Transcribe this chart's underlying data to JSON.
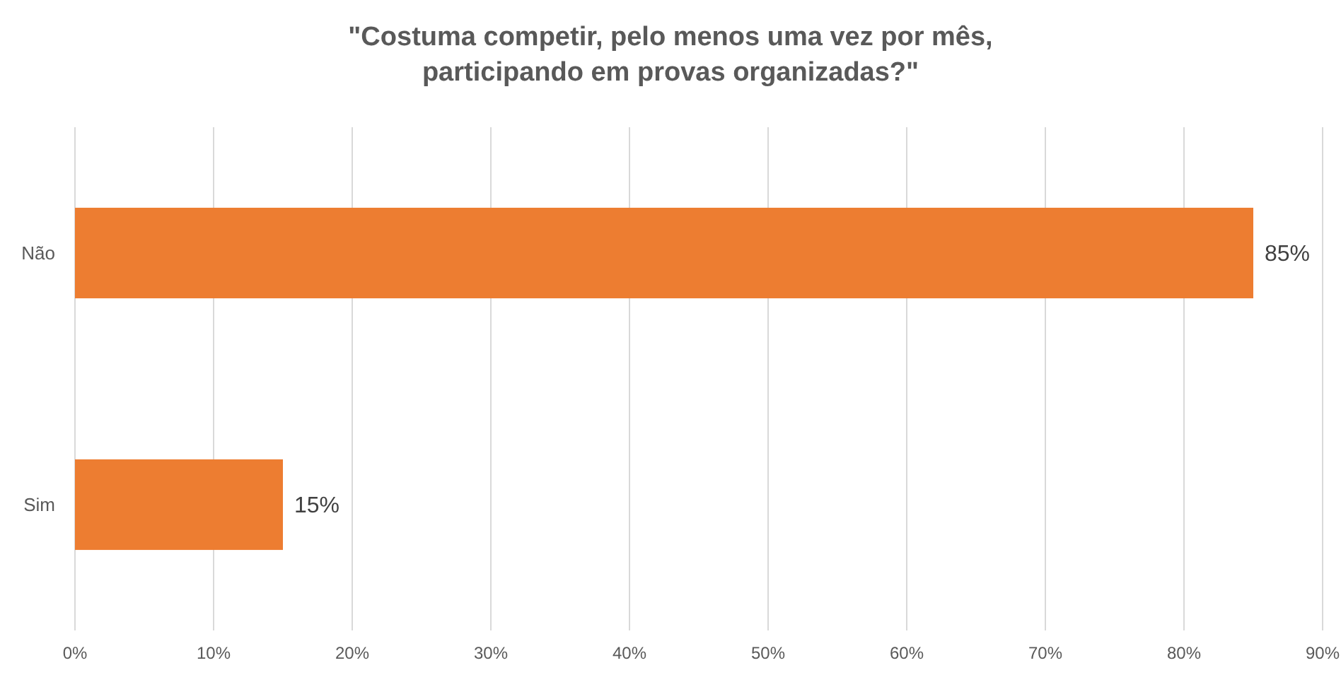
{
  "chart_data": {
    "type": "bar",
    "orientation": "horizontal",
    "title": "\"Costuma competir, pelo menos uma vez por mês,\nparticipando em provas organizadas?\"",
    "categories": [
      "Não",
      "Sim"
    ],
    "values": [
      85,
      15
    ],
    "color": "#ed7d31",
    "value_labels": [
      "85%",
      "15%"
    ],
    "xlim": [
      0,
      90
    ],
    "xticks": [
      {
        "value": 0,
        "label": "0%"
      },
      {
        "value": 10,
        "label": "10%"
      },
      {
        "value": 20,
        "label": "20%"
      },
      {
        "value": 30,
        "label": "30%"
      },
      {
        "value": 40,
        "label": "40%"
      },
      {
        "value": 50,
        "label": "50%"
      },
      {
        "value": 60,
        "label": "60%"
      },
      {
        "value": 70,
        "label": "70%"
      },
      {
        "value": 80,
        "label": "80%"
      },
      {
        "value": 90,
        "label": "90%"
      }
    ],
    "grid": "x"
  }
}
